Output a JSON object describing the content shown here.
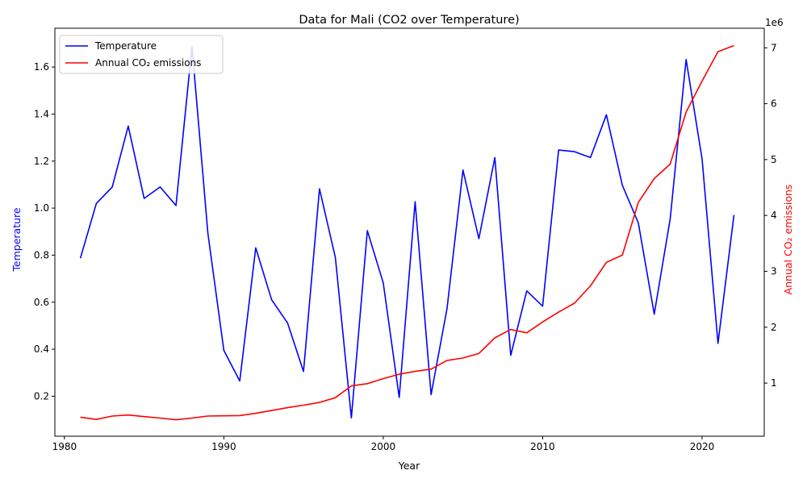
{
  "chart_data": {
    "type": "line",
    "title": "Data for Mali (CO2 over Temperature)",
    "xlabel": "Year",
    "ylabel_left": "Temperature",
    "ylabel_right": "Annual CO₂ emissions",
    "right_axis_multiplier": "1e6",
    "x_ticks": [
      "1980",
      "1990",
      "2000",
      "2010",
      "2020"
    ],
    "y_left_ticks": [
      "0.2",
      "0.4",
      "0.6",
      "0.8",
      "1.0",
      "1.2",
      "1.4",
      "1.6"
    ],
    "y_right_ticks": [
      "1",
      "2",
      "3",
      "4",
      "5",
      "6",
      "7"
    ],
    "xlim": [
      1979.4,
      2023.9
    ],
    "ylim_left": [
      0.03,
      1.765
    ],
    "ylim_right": [
      50000,
      7350000
    ],
    "grid": false,
    "legend_position": "upper left",
    "x": [
      1981,
      1982,
      1983,
      1984,
      1985,
      1986,
      1987,
      1988,
      1989,
      1990,
      1991,
      1992,
      1993,
      1994,
      1995,
      1996,
      1997,
      1998,
      1999,
      2000,
      2001,
      2002,
      2003,
      2004,
      2005,
      2006,
      2007,
      2008,
      2009,
      2010,
      2011,
      2012,
      2013,
      2014,
      2015,
      2016,
      2017,
      2018,
      2019,
      2020,
      2021,
      2022
    ],
    "series": [
      {
        "name": "Temperature",
        "axis": "left",
        "color": "#0000ff",
        "values": [
          0.787,
          1.02,
          1.09,
          1.349,
          1.041,
          1.09,
          1.011,
          1.688,
          0.893,
          0.395,
          0.265,
          0.831,
          0.61,
          0.511,
          0.305,
          1.082,
          0.789,
          0.108,
          0.904,
          0.682,
          0.195,
          1.027,
          0.207,
          0.572,
          1.162,
          0.87,
          1.215,
          0.374,
          0.648,
          0.583,
          1.247,
          1.24,
          1.215,
          1.397,
          1.097,
          0.937,
          0.549,
          0.955,
          1.632,
          1.209,
          0.425,
          0.971
        ]
      },
      {
        "name": "Annual CO₂ emissions",
        "axis": "right",
        "color": "#ff0000",
        "values": [
          390000,
          350000,
          410000,
          430000,
          400000,
          375000,
          345000,
          375000,
          410000,
          415000,
          420000,
          460000,
          510000,
          560000,
          605000,
          655000,
          740000,
          950000,
          990000,
          1080000,
          1160000,
          1210000,
          1250000,
          1405000,
          1450000,
          1530000,
          1810000,
          1960000,
          1900000,
          2095000,
          2270000,
          2430000,
          2740000,
          3160000,
          3290000,
          4235000,
          4660000,
          4920000,
          5850000,
          6405000,
          6930000,
          7040000
        ]
      }
    ]
  }
}
